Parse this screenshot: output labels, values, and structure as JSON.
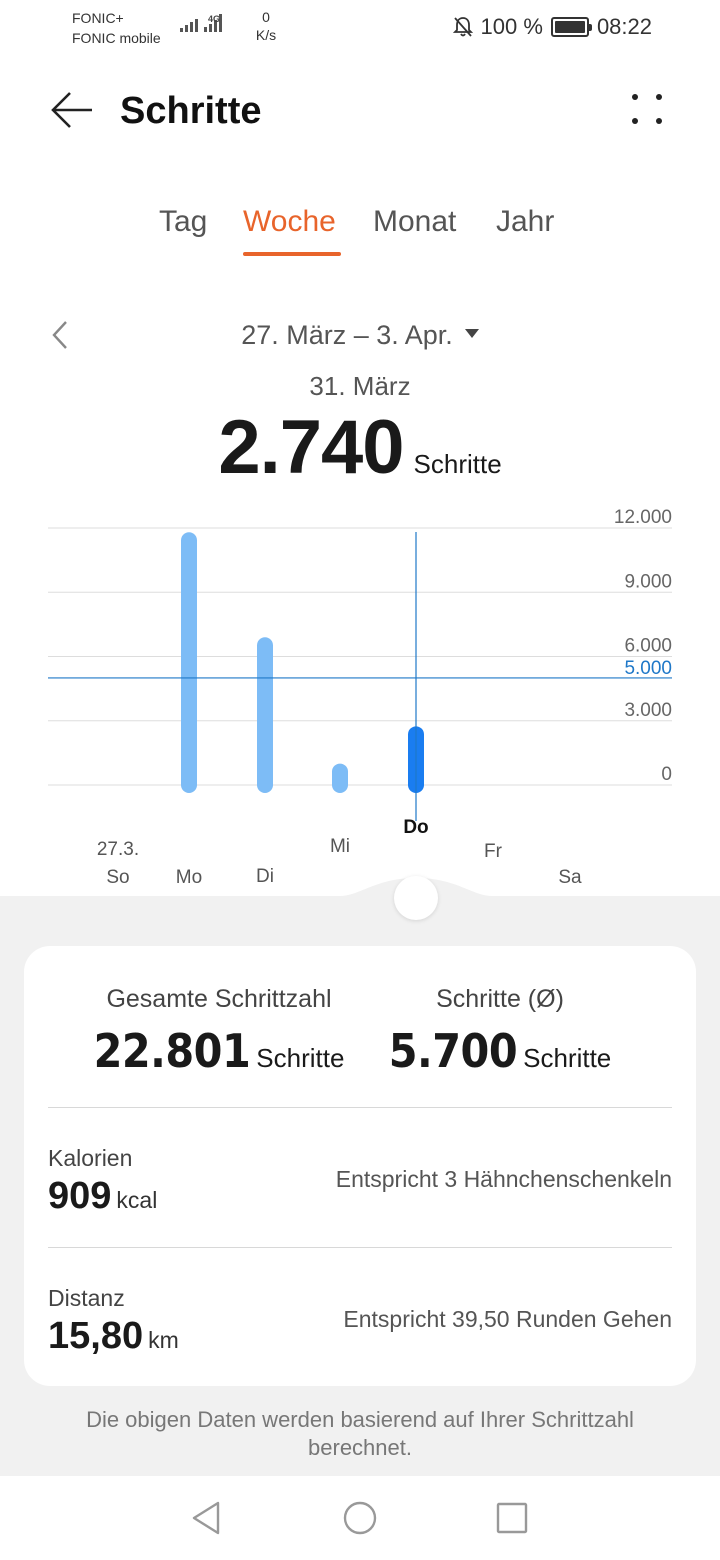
{
  "status_bar": {
    "carrier_1": "FONIC+",
    "carrier_2": "FONIC mobile",
    "network_type": "4G",
    "net_speed_value": "0",
    "net_speed_unit": "K/s",
    "battery": "100 %",
    "time": "08:22"
  },
  "header": {
    "title": "Schritte"
  },
  "tabs": [
    {
      "label": "Tag",
      "active": false
    },
    {
      "label": "Woche",
      "active": true
    },
    {
      "label": "Monat",
      "active": false
    },
    {
      "label": "Jahr",
      "active": false
    }
  ],
  "period": {
    "range": "27. März – 3. Apr.",
    "selected_date": "31. März",
    "selected_steps": "2.740",
    "steps_unit": "Schritte"
  },
  "chart_data": {
    "type": "bar",
    "categories": [
      "So",
      "Mo",
      "Di",
      "Mi",
      "Do",
      "Fr",
      "Sa"
    ],
    "category_date_labels": [
      "27.3.",
      "",
      "",
      "",
      "",
      "",
      ""
    ],
    "values": [
      0,
      11800,
      6900,
      1000,
      2740,
      0,
      0
    ],
    "ylim": [
      0,
      12000
    ],
    "yticks": [
      "12.000",
      "9.000",
      "6.000",
      "3.000",
      "0"
    ],
    "ytick_values": [
      12000,
      9000,
      6000,
      3000,
      0
    ],
    "goal_line": 5000,
    "goal_label": "5.000",
    "selected_index": 4,
    "grid": true,
    "bar_color": "#7dbcf6",
    "selected_bar_color": "#1a7df0",
    "goal_color": "#1f78c8"
  },
  "summary": {
    "total_label": "Gesamte Schrittzahl",
    "total_value": "22.801",
    "total_unit": "Schritte",
    "avg_label": "Schritte (Ø)",
    "avg_value": "5.700",
    "avg_unit": "Schritte",
    "calories_label": "Kalorien",
    "calories_value": "909",
    "calories_unit": "kcal",
    "calories_desc": "Entspricht 3 Hähnchenschenkeln",
    "distance_label": "Distanz",
    "distance_value": "15,80",
    "distance_unit": "km",
    "distance_desc": "Entspricht 39,50 Runden Gehen"
  },
  "footnote": "Die obigen Daten werden basierend auf Ihrer Schrittzahl berechnet.",
  "icons": {
    "back": "arrow-left-icon",
    "more": "more-dots-icon",
    "prev": "chevron-left-icon",
    "nav_back": "triangle-back-icon",
    "nav_home": "circle-home-icon",
    "nav_recent": "square-recent-icon"
  }
}
